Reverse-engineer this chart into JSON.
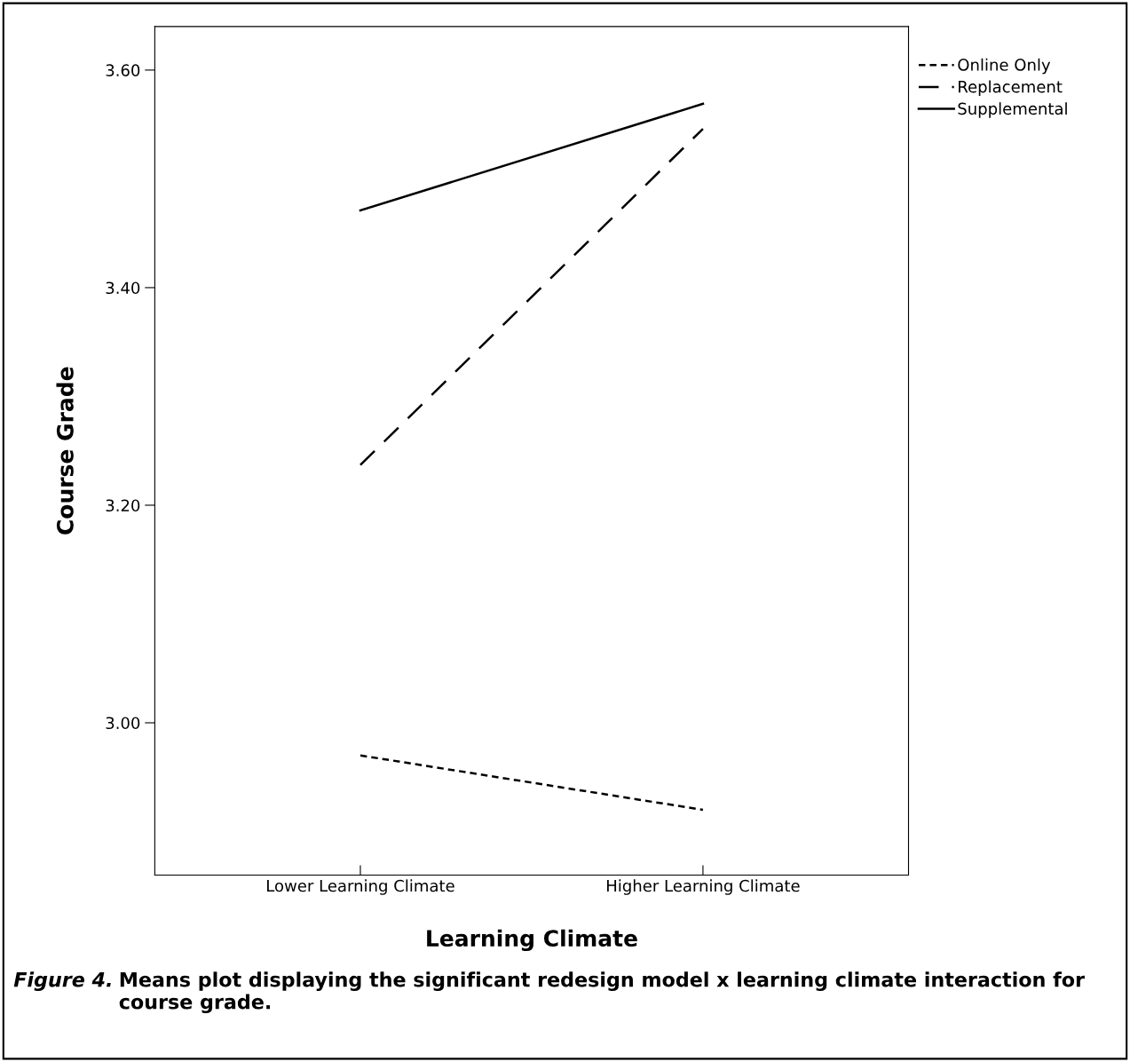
{
  "chart_data": {
    "type": "line",
    "xlabel": "Learning Climate",
    "ylabel": "Course Grade",
    "categories": [
      "Lower Learning Climate",
      "Higher Learning Climate"
    ],
    "series": [
      {
        "name": "Online Only",
        "color": "#000000",
        "line_style": "dotted",
        "values": [
          2.97,
          2.92
        ]
      },
      {
        "name": "Replacement",
        "color": "#000000",
        "line_style": "dashed",
        "values": [
          3.237,
          3.546
        ]
      },
      {
        "name": "Supplemental",
        "color": "#000000",
        "line_style": "solid",
        "values": [
          3.471,
          3.569
        ]
      }
    ],
    "ylim": [
      2.86,
      3.64
    ],
    "yticks": [
      {
        "value": 3.0,
        "label": "3.00"
      },
      {
        "value": 3.2,
        "label": "3.20"
      },
      {
        "value": 3.4,
        "label": "3.40"
      },
      {
        "value": 3.6,
        "label": "3.60"
      }
    ],
    "grid": false,
    "legend": "top right",
    "marker": "none",
    "annotations": [
      "Figure 4.",
      "Means plot displaying the significant redesign model x learning climate interaction for course grade."
    ]
  }
}
